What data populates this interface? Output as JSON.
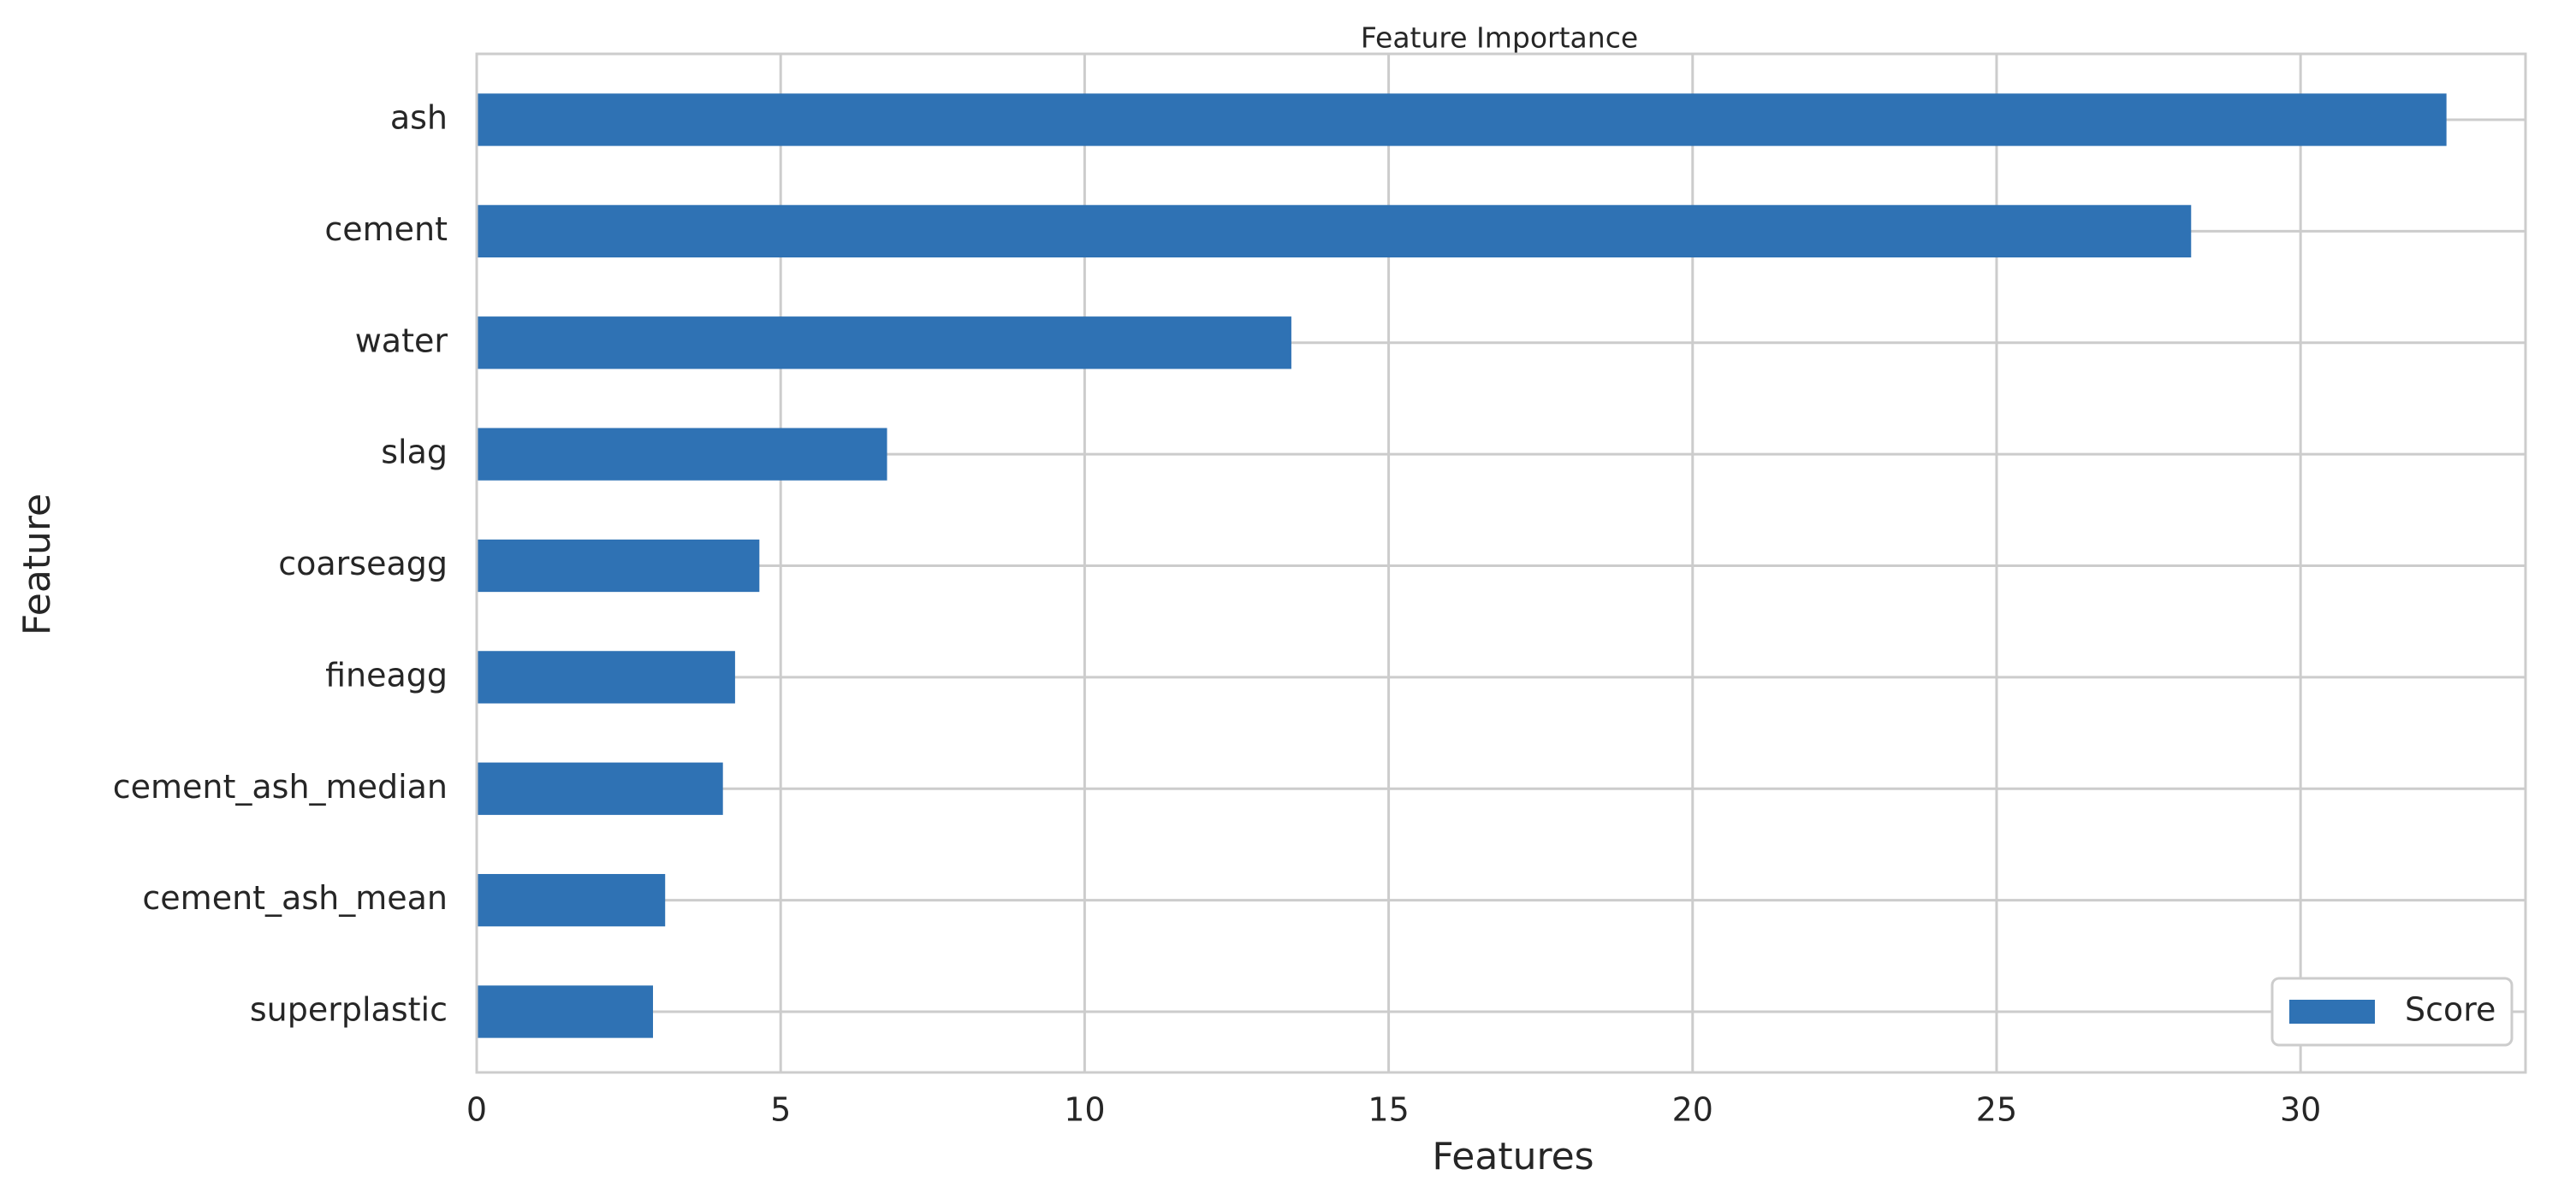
{
  "chart_data": {
    "type": "barh",
    "title": "Feature Importance",
    "xlabel": "Features",
    "ylabel": "Feature",
    "categories": [
      "ash",
      "cement",
      "water",
      "slag",
      "coarseagg",
      "fineagg",
      "cement_ash_median",
      "cement_ash_mean",
      "superplastic"
    ],
    "series": [
      {
        "name": "Score",
        "color": "#2f72b4",
        "values": [
          32.4,
          28.2,
          13.4,
          6.75,
          4.65,
          4.25,
          4.05,
          3.1,
          2.9
        ]
      }
    ],
    "xlim": [
      0,
      33.7
    ],
    "xticks": [
      0,
      5,
      10,
      15,
      20,
      25,
      30
    ],
    "grid": true,
    "legend": "lower right"
  }
}
